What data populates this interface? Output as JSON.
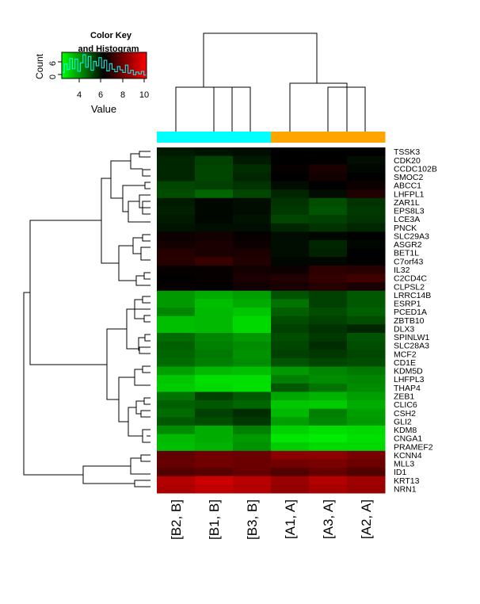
{
  "chart_data": {
    "type": "heatmap",
    "color_key": {
      "title_line1": "Color Key",
      "title_line2": "and Histogram",
      "xlabel": "Value",
      "ylabel": "Count",
      "ticks": [
        "4",
        "6",
        "8",
        "10"
      ],
      "ytick_labels": [
        "0",
        "6"
      ],
      "range": [
        2,
        10
      ],
      "low_color": "#00ff00",
      "mid_color": "#000000",
      "high_color": "#ff0000",
      "histogram_color": "#00ffff",
      "histogram_values": [
        1.2,
        3.5,
        2.0,
        5.0,
        2.2,
        4.8,
        1.5,
        3.8,
        6.0,
        2.6,
        5.5,
        1.8,
        4.2,
        3.0,
        5.2,
        2.4,
        4.5,
        1.6,
        3.6,
        2.1,
        1.4,
        2.8,
        1.9,
        1.2,
        3.2,
        1.0,
        1.8,
        0.6,
        1.3,
        0.8,
        1.5,
        0.5
      ]
    },
    "columns": [
      "[B2, B]",
      "[B1, B]",
      "[B3, B]",
      "[A1, A]",
      "[A3, A]",
      "[A2, A]"
    ],
    "column_groups": [
      "B",
      "B",
      "B",
      "A",
      "A",
      "A"
    ],
    "group_colors": {
      "B": "#00ffff",
      "A": "#ffa500"
    },
    "rows": [
      "TSSK3",
      "CDK20",
      "CCDC102B",
      "SMOC2",
      "ABCC1",
      "LHFPL1",
      "ZAR1L",
      "EPS8L3",
      "LCE3A",
      "PNCK",
      "SLC29A3",
      "ASGR2",
      "BET1L",
      "C7orf43",
      "IL32",
      "C2CD4C",
      "CLPSL2",
      "LRRC14B",
      "ESRP1",
      "PCED1A",
      "ZBTB10",
      "DLX3",
      "SPINLW1",
      "SLC28A3",
      "MCF2",
      "CD1E",
      "KDM5D",
      "LHFPL3",
      "THAP4",
      "ZEB1",
      "CLIC6",
      "CSH2",
      "GLI2",
      "KDM8",
      "CNGA1",
      "PRAMEF2",
      "KCNN4",
      "MLL3",
      "ID1",
      "KRT13",
      "NRN1"
    ],
    "values": [
      [
        5.6,
        5.7,
        5.8,
        6.0,
        6.0,
        6.0
      ],
      [
        5.4,
        5.0,
        5.6,
        6.0,
        6.0,
        5.8
      ],
      [
        5.4,
        4.9,
        5.3,
        6.1,
        6.4,
        5.9
      ],
      [
        5.4,
        4.9,
        5.4,
        6.0,
        6.3,
        6.0
      ],
      [
        4.9,
        5.0,
        5.2,
        5.8,
        6.0,
        6.2
      ],
      [
        4.8,
        4.4,
        4.9,
        5.4,
        5.8,
        6.5
      ],
      [
        5.6,
        5.9,
        5.8,
        5.2,
        4.8,
        5.2
      ],
      [
        5.5,
        5.9,
        5.8,
        5.1,
        4.7,
        5.1
      ],
      [
        5.6,
        5.9,
        5.7,
        4.9,
        5.0,
        5.2
      ],
      [
        5.7,
        5.8,
        5.8,
        5.4,
        5.2,
        5.4
      ],
      [
        6.2,
        6.3,
        6.1,
        5.8,
        5.9,
        6.0
      ],
      [
        6.3,
        6.4,
        6.2,
        5.8,
        5.4,
        5.9
      ],
      [
        6.6,
        6.4,
        6.4,
        5.8,
        5.5,
        6.0
      ],
      [
        6.6,
        6.9,
        6.5,
        5.9,
        5.9,
        6.0
      ],
      [
        6.1,
        6.1,
        6.3,
        6.2,
        6.7,
        6.6
      ],
      [
        6.0,
        6.1,
        6.4,
        6.5,
        6.8,
        7.0
      ],
      [
        6.1,
        6.0,
        6.3,
        6.4,
        6.6,
        6.4
      ],
      [
        3.6,
        3.3,
        3.5,
        4.7,
        5.0,
        4.6
      ],
      [
        3.6,
        3.0,
        3.3,
        4.2,
        5.0,
        4.6
      ],
      [
        3.9,
        3.1,
        2.9,
        4.5,
        4.8,
        4.5
      ],
      [
        3.0,
        3.1,
        2.6,
        4.8,
        5.0,
        4.8
      ],
      [
        3.0,
        3.1,
        2.6,
        5.0,
        5.2,
        5.4
      ],
      [
        4.3,
        3.9,
        3.6,
        4.8,
        5.1,
        4.7
      ],
      [
        4.5,
        4.0,
        3.8,
        4.9,
        5.3,
        4.8
      ],
      [
        4.4,
        4.1,
        3.7,
        5.0,
        5.1,
        4.9
      ],
      [
        4.3,
        4.0,
        3.8,
        4.7,
        4.9,
        4.8
      ],
      [
        3.5,
        3.1,
        3.0,
        3.6,
        3.9,
        4.1
      ],
      [
        2.9,
        2.5,
        2.5,
        4.0,
        3.8,
        3.9
      ],
      [
        2.8,
        2.6,
        2.5,
        4.6,
        4.2,
        3.8
      ],
      [
        4.2,
        5.0,
        4.6,
        3.4,
        3.2,
        3.5
      ],
      [
        4.5,
        4.6,
        4.4,
        2.9,
        2.8,
        3.3
      ],
      [
        4.3,
        5.0,
        5.3,
        3.1,
        4.0,
        3.5
      ],
      [
        4.6,
        4.8,
        5.1,
        3.5,
        3.9,
        3.6
      ],
      [
        3.8,
        3.3,
        4.0,
        2.7,
        2.5,
        2.6
      ],
      [
        3.1,
        3.3,
        3.6,
        2.4,
        2.3,
        2.5
      ],
      [
        3.0,
        3.2,
        3.7,
        2.8,
        2.6,
        2.6
      ],
      [
        7.5,
        7.8,
        7.7,
        8.2,
        8.2,
        7.9
      ],
      [
        7.6,
        7.8,
        7.7,
        7.8,
        7.9,
        7.7
      ],
      [
        7.3,
        7.4,
        7.6,
        7.3,
        7.6,
        7.3
      ],
      [
        8.8,
        9.2,
        8.9,
        8.4,
        8.8,
        8.5
      ],
      [
        8.7,
        9.0,
        8.8,
        8.3,
        8.6,
        8.4
      ]
    ]
  }
}
